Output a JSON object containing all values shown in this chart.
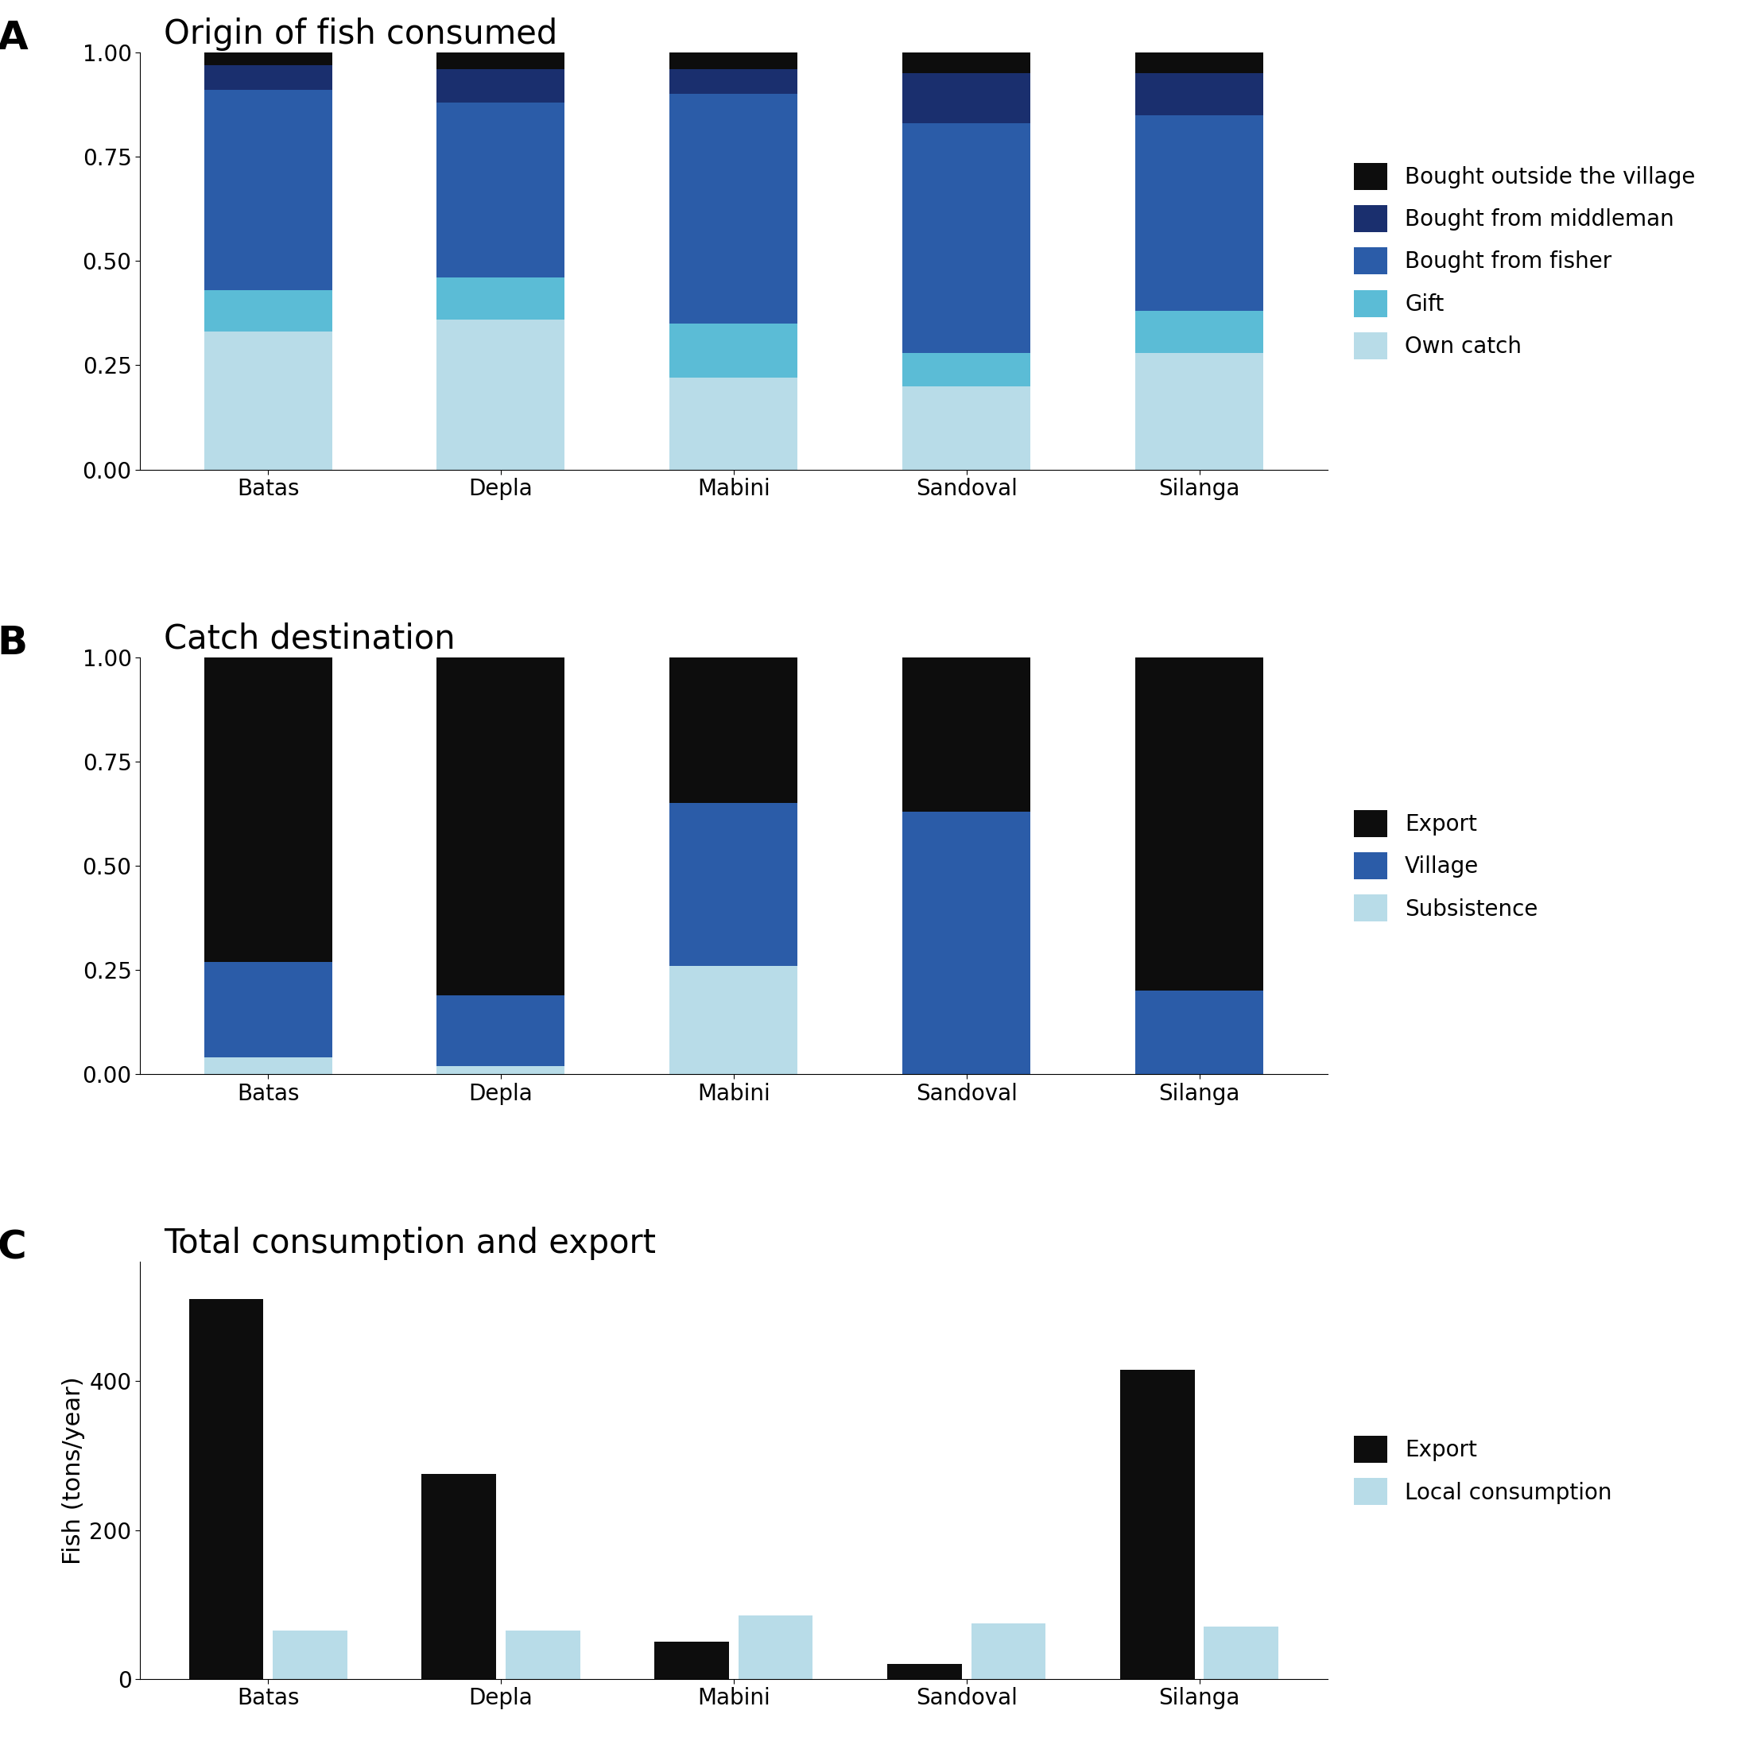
{
  "villages": [
    "Batas",
    "Depla",
    "Mabini",
    "Sandoval",
    "Silanga"
  ],
  "panel_A_title": "Origin of fish consumed",
  "panel_A_categories": [
    "Own catch",
    "Gift",
    "Bought from fisher",
    "Bought from middleman",
    "Bought outside the village"
  ],
  "panel_A_colors": [
    "#b8dce8",
    "#5bbcd6",
    "#2b5ca8",
    "#1a2f6e",
    "#0d0d0d"
  ],
  "panel_A_data": {
    "Batas": [
      0.33,
      0.1,
      0.48,
      0.06,
      0.03
    ],
    "Depla": [
      0.36,
      0.1,
      0.42,
      0.08,
      0.04
    ],
    "Mabini": [
      0.22,
      0.13,
      0.55,
      0.06,
      0.04
    ],
    "Sandoval": [
      0.2,
      0.08,
      0.55,
      0.12,
      0.05
    ],
    "Silanga": [
      0.28,
      0.1,
      0.47,
      0.1,
      0.05
    ]
  },
  "panel_B_title": "Catch destination",
  "panel_B_categories": [
    "Subsistence",
    "Village",
    "Export"
  ],
  "panel_B_colors": [
    "#b8dce8",
    "#2b5ca8",
    "#0d0d0d"
  ],
  "panel_B_data": {
    "Batas": [
      0.04,
      0.23,
      0.73
    ],
    "Depla": [
      0.02,
      0.17,
      0.81
    ],
    "Mabini": [
      0.26,
      0.39,
      0.35
    ],
    "Sandoval": [
      0.0,
      0.63,
      0.37
    ],
    "Silanga": [
      0.0,
      0.2,
      0.8
    ]
  },
  "panel_C_title": "Total consumption and export",
  "panel_C_ylabel": "Fish (tons/year)",
  "panel_C_categories": [
    "Export",
    "Local consumption"
  ],
  "panel_C_colors": [
    "#0d0d0d",
    "#b8dce8"
  ],
  "panel_C_export": [
    510,
    275,
    50,
    20,
    415
  ],
  "panel_C_local": [
    65,
    65,
    85,
    75,
    70
  ],
  "label_A": "A",
  "label_B": "B",
  "label_C": "C",
  "background_color": "#ffffff",
  "axis_label_fontsize": 22,
  "tick_fontsize": 20,
  "title_fontsize": 30,
  "legend_fontsize": 20,
  "panel_label_fontsize": 36
}
